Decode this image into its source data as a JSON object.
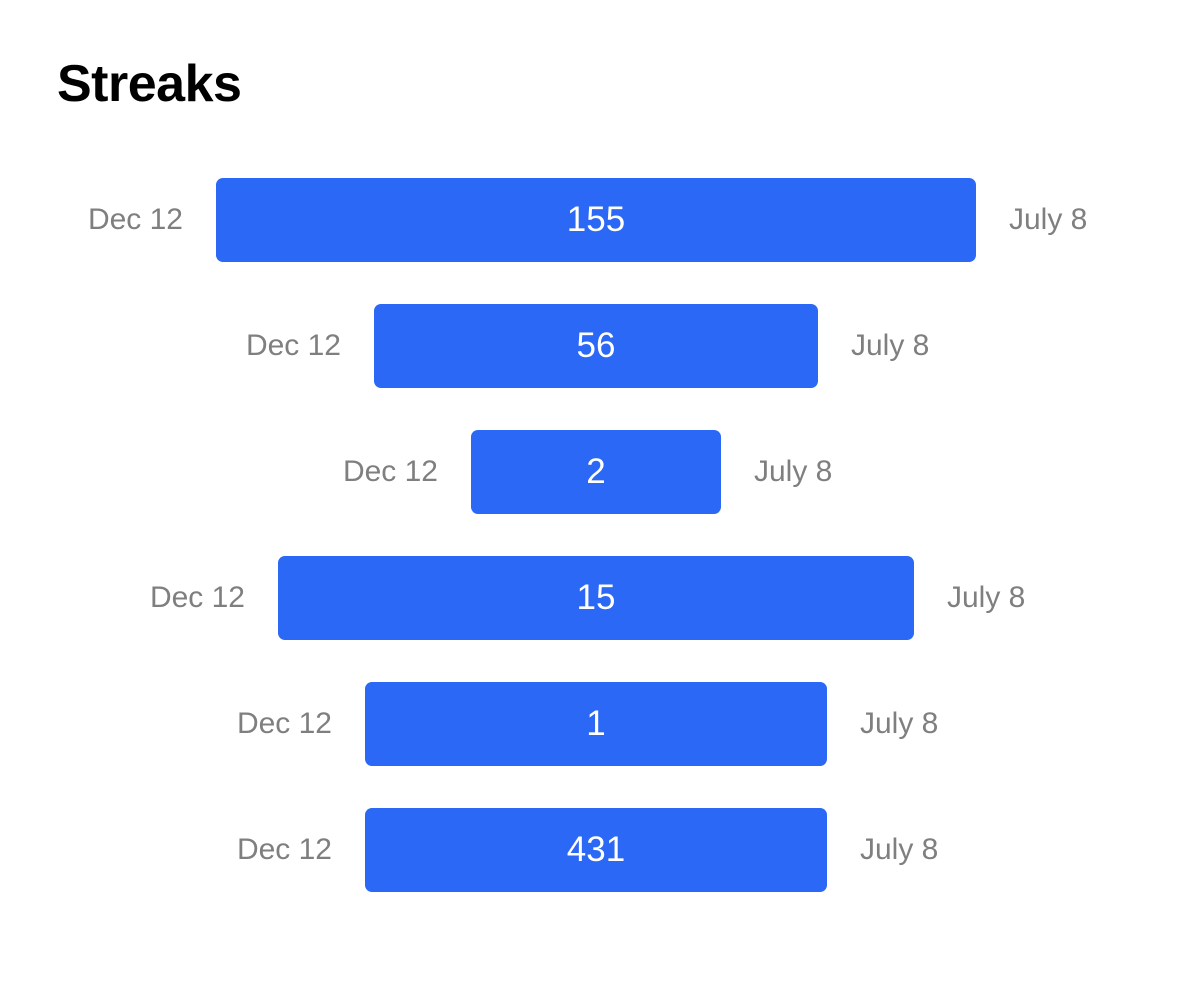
{
  "title": "Streaks",
  "colors": {
    "bar": "#2b68f5",
    "bar_text": "#ffffff",
    "date_text": "#7f7f7f",
    "title_text": "#000000"
  },
  "chart_data": {
    "type": "bar",
    "orientation": "horizontal-centered",
    "title": "Streaks",
    "series": [
      {
        "name": "",
        "values": [
          155,
          56,
          2,
          15,
          1,
          431
        ]
      }
    ],
    "rows": [
      {
        "start": "Dec 12",
        "value": 155,
        "end": "July 8"
      },
      {
        "start": "Dec 12",
        "value": 56,
        "end": "July 8"
      },
      {
        "start": "Dec 12",
        "value": 2,
        "end": "July 8"
      },
      {
        "start": "Dec 12",
        "value": 15,
        "end": "July 8"
      },
      {
        "start": "Dec 12",
        "value": 1,
        "end": "July 8"
      },
      {
        "start": "Dec 12",
        "value": 431,
        "end": "July 8"
      }
    ]
  }
}
